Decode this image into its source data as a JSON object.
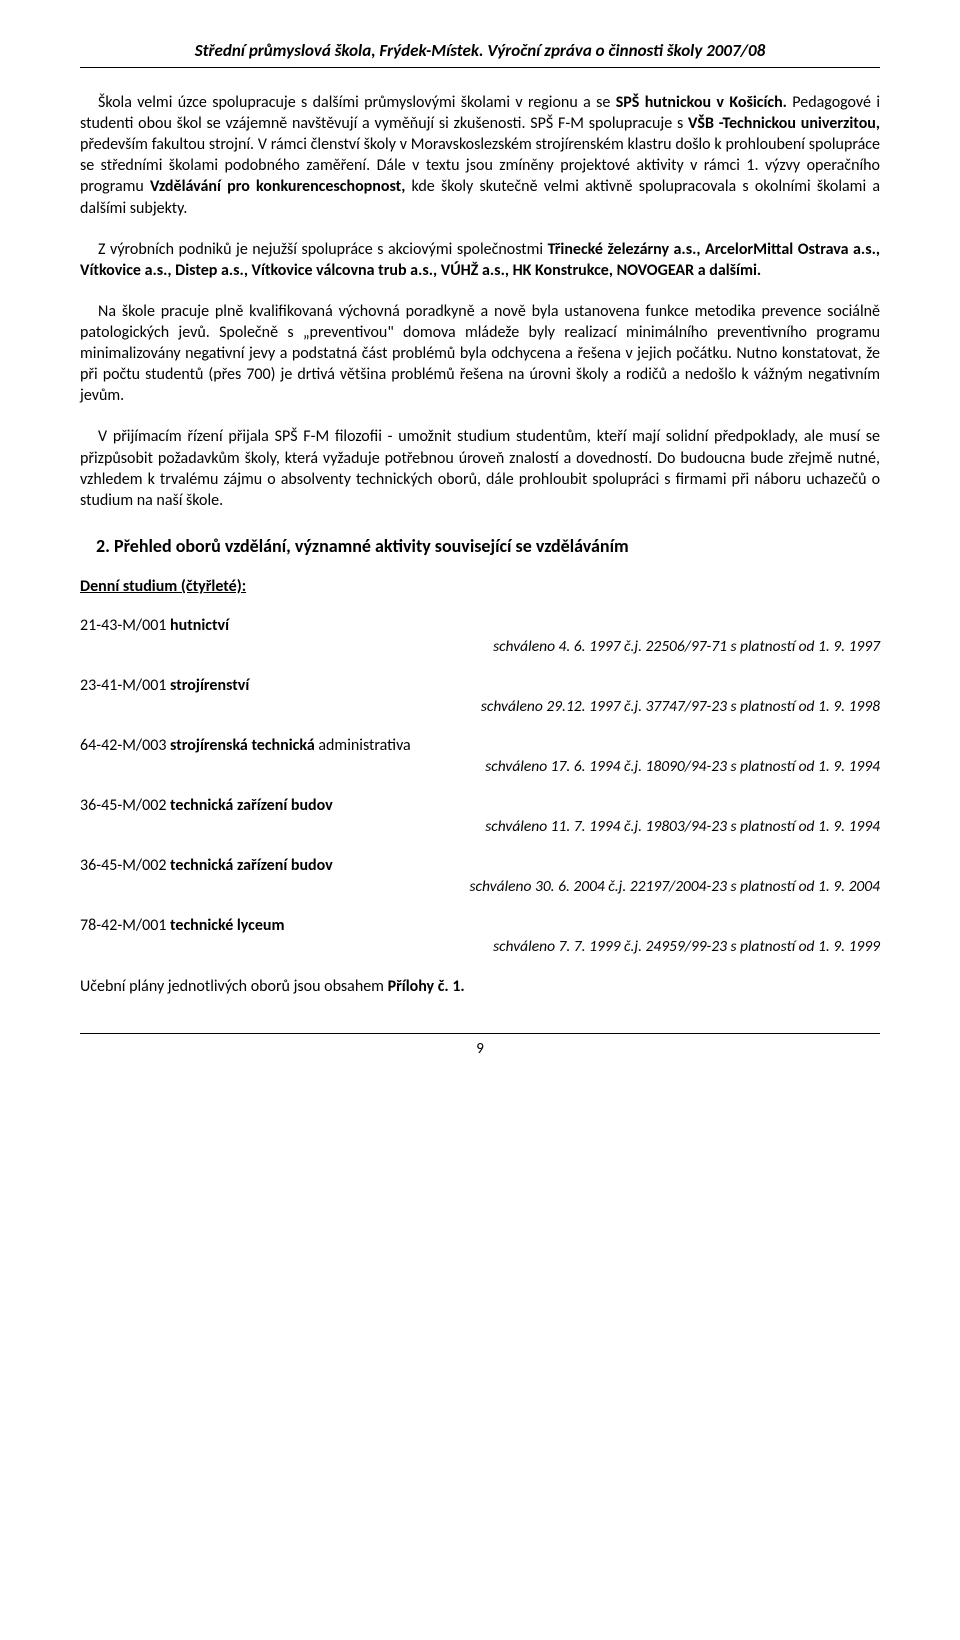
{
  "header": {
    "title": "Střední průmyslová škola, Frýdek-Místek. Výroční zpráva o činnosti školy 2007/08"
  },
  "paragraphs": {
    "p1_a": "Škola velmi úzce spolupracuje s dalšími průmyslovými školami v regionu a se ",
    "p1_b": "SPŠ hutnickou v Košicích.",
    "p1_c": " Pedagogové i studenti obou škol se vzájemně navštěvují a vyměňují si zkušenosti. SPŠ F-M spolupracuje s ",
    "p1_d": "VŠB -Technickou univerzitou,",
    "p1_e": " především fakultou strojní. V rámci členství školy v Moravskoslezském strojírenském klastru došlo k prohloubení spolupráce se středními školami podobného zaměření. Dále v textu jsou zmíněny projektové aktivity v rámci 1. výzvy operačního programu ",
    "p1_f": "Vzdělávání pro konkurenceschopnost,",
    "p1_g": " kde školy skutečně velmi aktivně spolupracovala s okolními školami a dalšími subjekty.",
    "p2_a": "Z  výrobních podniků je nejužší spolupráce s akciovými společnostmi ",
    "p2_b": "Třinecké železárny a.s., ArcelorMittal Ostrava a.s., Vítkovice a.s., Distep a.s., Vítkovice válcovna trub a.s., VÚHŽ a.s., HK Konstrukce, NOVOGEAR a dalšími.",
    "p3": "Na škole pracuje plně kvalifikovaná výchovná poradkyně a nově byla ustanovena funkce metodika prevence sociálně patologických jevů. Společně s „preventivou\" domova mládeže byly realizací minimálního preventivního programu minimalizovány negativní jevy a podstatná část problémů byla odchycena a řešena v jejich počátku. Nutno konstatovat, že při počtu studentů (přes 700) je drtivá většina problémů řešena na úrovni školy a rodičů a nedošlo k vážným negativním jevům.",
    "p4": "V přijímacím řízení přijala SPŠ F-M filozofii - umožnit studium studentům, kteří mají solidní předpoklady, ale musí se přizpůsobit požadavkům školy, která vyžaduje potřebnou úroveň znalostí a dovedností. Do budoucna bude zřejmě nutné, vzhledem k trvalému zájmu o absolventy technických oborů, dále prohloubit spolupráci s firmami při náboru uchazečů o studium na naší škole."
  },
  "section2_heading": "2.  Přehled oborů vzdělání, významné aktivity související se vzděláváním",
  "denni_studium": "Denní studium (čtyřleté):",
  "programs": [
    {
      "code": "21-43-M/001",
      "name_bold": "hutnictví",
      "name_rest": "",
      "note": "schváleno 4. 6. 1997 č.j. 22506/97-71 s platností od 1. 9. 1997"
    },
    {
      "code": "23-41-M/001",
      "name_bold": "strojírenství",
      "name_rest": "",
      "note": "schváleno 29.12.  1997 č.j. 37747/97-23 s platností od 1. 9. 1998"
    },
    {
      "code": "64-42-M/003",
      "name_bold": "strojírenská technická ",
      "name_rest": "administrativa",
      "note": "schváleno 17. 6. 1994 č.j. 18090/94-23  s platností od 1. 9. 1994"
    },
    {
      "code": "36-45-M/002",
      "name_bold": "technická zařízení budov",
      "name_rest": "",
      "note": "schváleno 11. 7. 1994 č.j. 19803/94-23 s platností od 1. 9. 1994"
    },
    {
      "code": "36-45-M/002",
      "name_bold": "technická zařízení budov",
      "name_rest": "",
      "note": "schváleno 30. 6. 2004 č.j. 22197/2004-23 s platností od 1. 9. 2004"
    },
    {
      "code": "78-42-M/001",
      "name_bold": "technické lyceum",
      "name_rest": "",
      "note": "schváleno 7. 7. 1999 č.j. 24959/99-23 s platností od 1. 9. 1999"
    }
  ],
  "closing_a": "Učební plány jednotlivých oborů jsou obsahem ",
  "closing_b": "Přílohy č. 1.",
  "page_number": "9"
}
